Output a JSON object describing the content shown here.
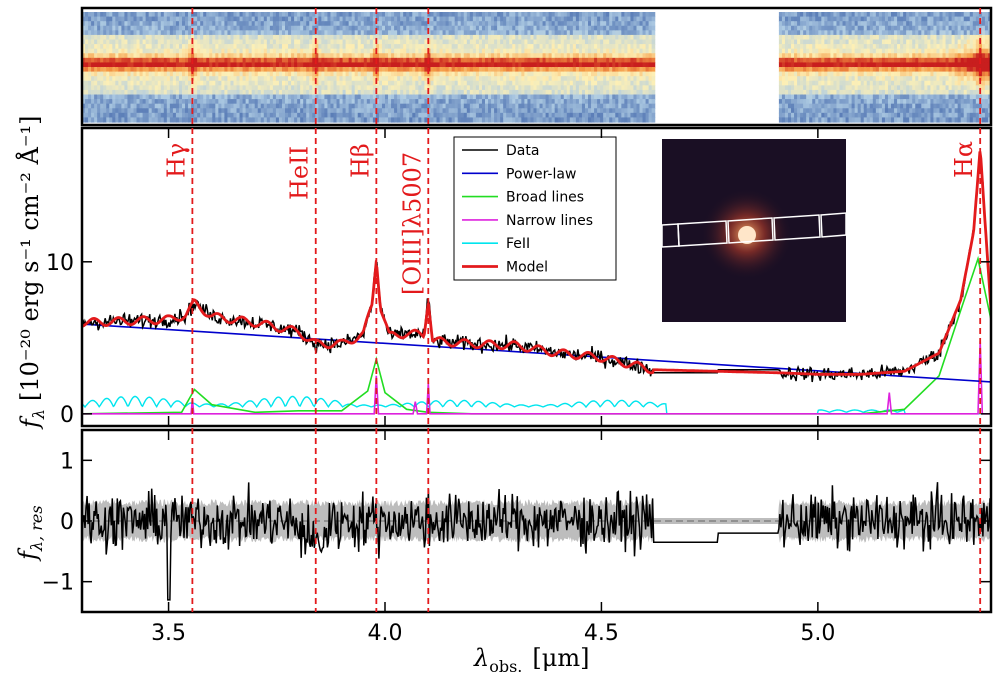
{
  "chart_data": [
    {
      "type": "heatmap",
      "panel": "2d-spectrum",
      "description_label": "",
      "xlim": [
        3.3,
        5.4
      ],
      "gap": [
        4.62,
        4.91
      ],
      "colormap": [
        "#3a5fa6",
        "#aecbe3",
        "#fdf0b6",
        "#f59b45",
        "#c81e1e"
      ]
    },
    {
      "type": "line",
      "panel": "spectrum",
      "xlim": [
        3.3,
        5.4
      ],
      "ylim": [
        -0.8,
        18.8
      ],
      "yticks": [
        0,
        10
      ],
      "ytick_labels": [
        "0",
        "10"
      ],
      "ylabel_prefix": "f",
      "ylabel_sub": "λ",
      "ylabel_units": "[10⁻²⁰ erg s⁻¹ cm⁻² Å⁻¹]",
      "emission_lines": [
        {
          "name": "Hγ",
          "x": 3.555
        },
        {
          "name": "HeII",
          "x": 3.84
        },
        {
          "name": "Hβ",
          "x": 3.98
        },
        {
          "name": "[OIII]λ5007",
          "x": 4.1
        },
        {
          "name": "Hα",
          "x": 5.375
        }
      ],
      "legend": {
        "location": "top-center",
        "entries": [
          {
            "label": "Data",
            "color": "#000000"
          },
          {
            "label": "Power-law",
            "color": "#0000cc"
          },
          {
            "label": "Broad lines",
            "color": "#22dd22"
          },
          {
            "label": "Narrow lines",
            "color": "#dd22dd"
          },
          {
            "label": "FeII",
            "color": "#00e5ee"
          },
          {
            "label": "Model",
            "color": "#e31a1c"
          }
        ]
      },
      "series": [
        {
          "name": "Power-law",
          "x": [
            3.3,
            5.4
          ],
          "values": [
            5.9,
            2.1
          ]
        },
        {
          "name": "Broad lines",
          "x": [
            3.3,
            3.53,
            3.56,
            3.6,
            3.7,
            3.8,
            3.9,
            3.96,
            3.98,
            4.0,
            4.05,
            4.1,
            4.2,
            5.1,
            5.2,
            5.28,
            5.33,
            5.37,
            5.4
          ],
          "values": [
            0,
            0.1,
            1.6,
            0.6,
            0.1,
            0.2,
            0.2,
            1.5,
            3.6,
            1.4,
            0.3,
            0.1,
            0,
            0,
            0.3,
            2.5,
            6.8,
            10.2,
            6.2
          ]
        },
        {
          "name": "Narrow lines",
          "x": [
            3.3,
            3.552,
            3.555,
            3.558,
            3.975,
            3.98,
            3.985,
            4.065,
            4.07,
            4.075,
            4.096,
            4.1,
            4.104,
            5.16,
            5.165,
            5.17,
            5.37,
            5.375,
            5.38,
            5.4
          ],
          "values": [
            0,
            0,
            1.0,
            0,
            0,
            2.5,
            0,
            0,
            0.8,
            0,
            0,
            2.0,
            0,
            0,
            1.4,
            0,
            0,
            4.8,
            0,
            0
          ]
        },
        {
          "name": "Model",
          "x": [
            3.3,
            3.4,
            3.5,
            3.54,
            3.56,
            3.6,
            3.7,
            3.8,
            3.84,
            3.9,
            3.95,
            3.97,
            3.98,
            3.99,
            4.01,
            4.05,
            4.09,
            4.1,
            4.11,
            4.2,
            4.3,
            4.4,
            4.5,
            4.62,
            4.91,
            5.0,
            5.1,
            5.2,
            5.28,
            5.33,
            5.36,
            5.375,
            5.39,
            5.4
          ],
          "values": [
            6.0,
            6.1,
            6.2,
            6.5,
            7.3,
            6.4,
            6.0,
            5.4,
            4.6,
            4.6,
            5.2,
            7.2,
            10.3,
            7.0,
            5.1,
            5.3,
            5.2,
            7.6,
            4.8,
            4.6,
            4.5,
            4.0,
            3.7,
            2.9,
            2.7,
            2.6,
            2.6,
            2.8,
            4.0,
            7.5,
            12.0,
            17.5,
            11.0,
            6.8
          ]
        }
      ],
      "inset_image": {
        "background": "#1a0f24",
        "source_color": "#ffe6c9"
      }
    },
    {
      "type": "line",
      "panel": "residuals",
      "xlim": [
        3.3,
        5.4
      ],
      "ylim": [
        -1.5,
        1.5
      ],
      "yticks": [
        -1,
        0,
        1
      ],
      "ytick_labels": [
        "−1",
        "0",
        "1"
      ],
      "xticks": [
        3.5,
        4.0,
        4.5,
        5.0
      ],
      "xtick_labels": [
        "3.5",
        "4.0",
        "4.5",
        "5.0"
      ],
      "ylabel_prefix": "f",
      "ylabel_sub": "λ, res",
      "xlabel_prefix": "λ",
      "xlabel_sub": "obs.",
      "xlabel_units": "[μm]",
      "uncertainty_band": 0.3
    }
  ]
}
